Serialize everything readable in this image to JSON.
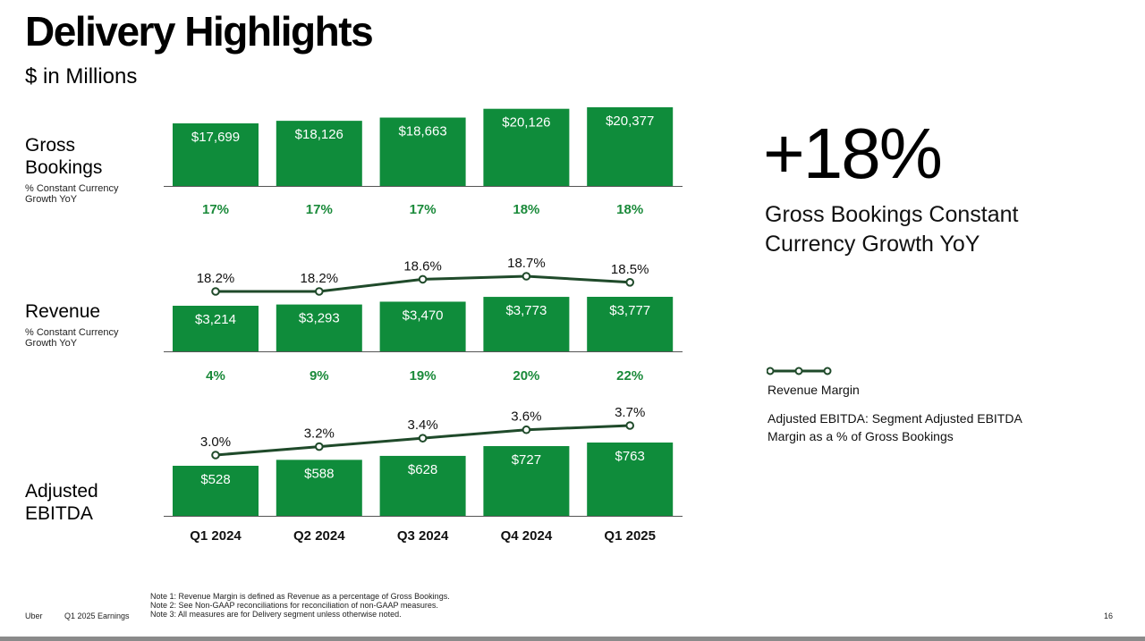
{
  "page": {
    "title": "Delivery Highlights",
    "subtitle": "$ in Millions",
    "headline_value": "+18%",
    "headline_caption": "Gross Bookings Constant Currency Growth YoY",
    "legend": {
      "label": "Revenue Margin",
      "note": "Adjusted EBITDA: Segment Adjusted EBITDA Margin as a % of Gross Bookings"
    },
    "footer": {
      "brand": "Uber",
      "deck": "Q1 2025 Earnings",
      "notes": [
        "Note 1: Revenue Margin is defined as Revenue as a percentage of Gross Bookings.",
        "Note 2: See Non-GAAP reconciliations for reconciliation of non-GAAP measures.",
        "Note 3: All measures are for Delivery segment unless otherwise noted."
      ],
      "page_number": "16"
    },
    "colors": {
      "bar": "#0f8c3b",
      "growth_text": "#1a8a3a",
      "line": "#1f4a2a",
      "baseline": "#555555"
    }
  },
  "chart_data": [
    {
      "type": "bar",
      "title": "Gross Bookings",
      "subtitle": "% Constant Currency Growth YoY",
      "categories": [
        "Q1 2024",
        "Q2 2024",
        "Q3 2024",
        "Q4 2024",
        "Q1 2025"
      ],
      "values": [
        17699,
        18126,
        18663,
        20126,
        20377
      ],
      "value_labels": [
        "$17,699",
        "$18,126",
        "$18,663",
        "$20,126",
        "$20,377"
      ],
      "growth_labels": [
        "17%",
        "17%",
        "17%",
        "18%",
        "18%"
      ],
      "grid": false
    },
    {
      "type": "bar",
      "title": "Revenue",
      "subtitle": "% Constant Currency Growth YoY",
      "categories": [
        "Q1 2024",
        "Q2 2024",
        "Q3 2024",
        "Q4 2024",
        "Q1 2025"
      ],
      "values": [
        3214,
        3293,
        3470,
        3773,
        3777
      ],
      "value_labels": [
        "$3,214",
        "$3,293",
        "$3,470",
        "$3,773",
        "$3,777"
      ],
      "growth_labels": [
        "4%",
        "9%",
        "19%",
        "20%",
        "22%"
      ],
      "line_series": {
        "name": "Revenue Margin",
        "values": [
          18.2,
          18.2,
          18.6,
          18.7,
          18.5
        ],
        "labels": [
          "18.2%",
          "18.2%",
          "18.6%",
          "18.7%",
          "18.5%"
        ]
      },
      "grid": false
    },
    {
      "type": "bar",
      "title": "Adjusted EBITDA",
      "subtitle": "",
      "categories": [
        "Q1 2024",
        "Q2 2024",
        "Q3 2024",
        "Q4 2024",
        "Q1 2025"
      ],
      "values": [
        528,
        588,
        628,
        727,
        763
      ],
      "value_labels": [
        "$528",
        "$588",
        "$628",
        "$727",
        "$763"
      ],
      "growth_labels": [],
      "line_series": {
        "name": "Adjusted EBITDA Margin",
        "values": [
          3.0,
          3.2,
          3.4,
          3.6,
          3.7
        ],
        "labels": [
          "3.0%",
          "3.2%",
          "3.4%",
          "3.6%",
          "3.7%"
        ]
      },
      "grid": false
    }
  ]
}
